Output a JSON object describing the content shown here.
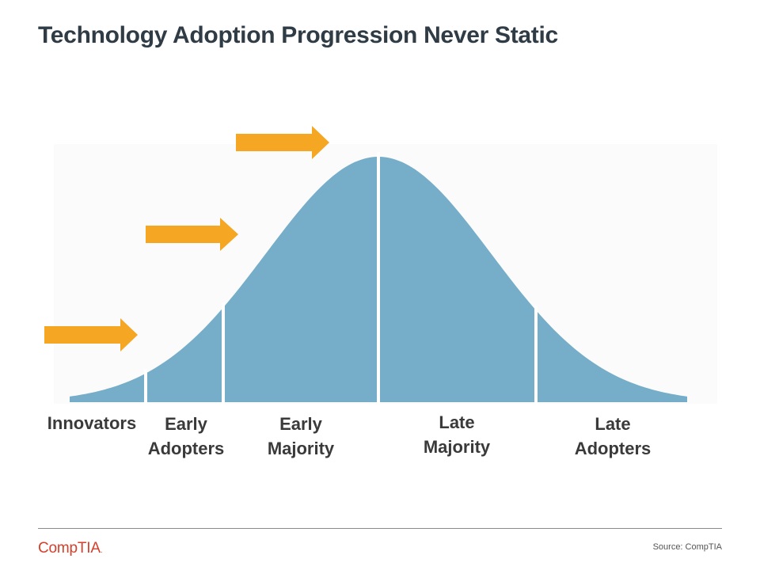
{
  "slide": {
    "title": "Technology Adoption Progression Never Static"
  },
  "diagram": {
    "curve_color": "#76adc8",
    "arrow_color": "#f5a623",
    "divider_color": "#ffffff",
    "segments": [
      {
        "id": "innovators",
        "label_lines": [
          "Innovators"
        ]
      },
      {
        "id": "early-adopters",
        "label_lines": [
          "Early",
          "Adopters"
        ]
      },
      {
        "id": "early-majority",
        "label_lines": [
          "Early",
          "Majority"
        ]
      },
      {
        "id": "late-majority",
        "label_lines": [
          "Late",
          "Majority"
        ]
      },
      {
        "id": "late-adopters",
        "label_lines": [
          "Late",
          "Adopters"
        ]
      }
    ],
    "arrows": [
      {
        "id": "arrow-1",
        "icon": "right-arrow-icon"
      },
      {
        "id": "arrow-2",
        "icon": "right-arrow-icon"
      },
      {
        "id": "arrow-3",
        "icon": "right-arrow-icon"
      }
    ]
  },
  "footer": {
    "logo_text": "CompTIA",
    "logo_mark": ".",
    "source": "Source: CompTIA"
  }
}
